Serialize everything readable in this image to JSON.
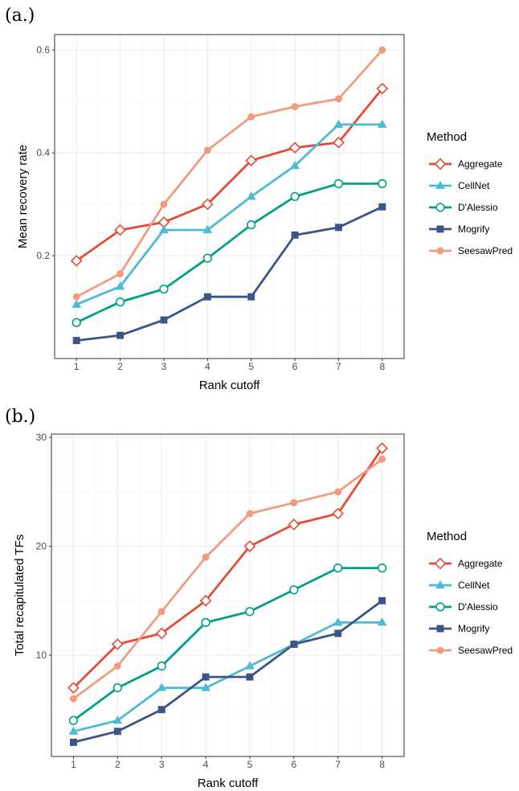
{
  "chart_data": [
    {
      "type": "line",
      "panel_label": "(a.)",
      "xlabel": "Rank cutoff",
      "ylabel": "Mean recovery rate",
      "x": [
        1,
        2,
        3,
        4,
        5,
        6,
        7,
        8
      ],
      "xlim": [
        0.5,
        8.5
      ],
      "ylim": [
        0.0,
        0.63
      ],
      "yticks": [
        0.2,
        0.4,
        0.6
      ],
      "ytick_labels": [
        "0.2",
        "0.4",
        "0.6"
      ],
      "legend_title": "Method",
      "legend_position": "right",
      "grid": true,
      "series": [
        {
          "name": "Aggregate",
          "color": "#e64b35",
          "marker": "diamond-open",
          "values": [
            0.19,
            0.25,
            0.265,
            0.3,
            0.385,
            0.41,
            0.42,
            0.525
          ]
        },
        {
          "name": "CellNet",
          "color": "#4dbbd5",
          "marker": "triangle",
          "values": [
            0.105,
            0.14,
            0.25,
            0.25,
            0.315,
            0.375,
            0.455,
            0.455
          ]
        },
        {
          "name": "D'Alessio",
          "color": "#00a087",
          "marker": "circle-open",
          "values": [
            0.07,
            0.11,
            0.135,
            0.195,
            0.26,
            0.315,
            0.34,
            0.34
          ]
        },
        {
          "name": "Mogrify",
          "color": "#3c5488",
          "marker": "square",
          "values": [
            0.035,
            0.045,
            0.075,
            0.12,
            0.12,
            0.24,
            0.255,
            0.295
          ]
        },
        {
          "name": "SeesawPred",
          "color": "#f39b7f",
          "marker": "circle",
          "values": [
            0.12,
            0.165,
            0.3,
            0.405,
            0.47,
            0.49,
            0.505,
            0.6
          ]
        }
      ]
    },
    {
      "type": "line",
      "panel_label": "(b.)",
      "xlabel": "Rank cutoff",
      "ylabel": "Total recapitulated TFs",
      "x": [
        1,
        2,
        3,
        4,
        5,
        6,
        7,
        8
      ],
      "xlim": [
        0.5,
        8.5
      ],
      "ylim": [
        0.7,
        30.3
      ],
      "yticks": [
        10,
        20,
        30
      ],
      "ytick_labels": [
        "10",
        "20",
        "30"
      ],
      "legend_title": "Method",
      "legend_position": "right",
      "grid": true,
      "series": [
        {
          "name": "Aggregate",
          "color": "#e64b35",
          "marker": "diamond-open",
          "values": [
            7,
            11,
            12,
            15,
            20,
            22,
            23,
            29
          ]
        },
        {
          "name": "CellNet",
          "color": "#4dbbd5",
          "marker": "triangle",
          "values": [
            3,
            4,
            7,
            7,
            9,
            11,
            13,
            13
          ]
        },
        {
          "name": "D'Alessio",
          "color": "#00a087",
          "marker": "circle-open",
          "values": [
            4,
            7,
            9,
            13,
            14,
            16,
            18,
            18
          ]
        },
        {
          "name": "Mogrify",
          "color": "#3c5488",
          "marker": "square",
          "values": [
            2,
            3,
            5,
            8,
            8,
            11,
            12,
            15
          ]
        },
        {
          "name": "SeesawPred",
          "color": "#f39b7f",
          "marker": "circle",
          "values": [
            6,
            9,
            14,
            19,
            23,
            24,
            25,
            28
          ]
        }
      ]
    }
  ]
}
